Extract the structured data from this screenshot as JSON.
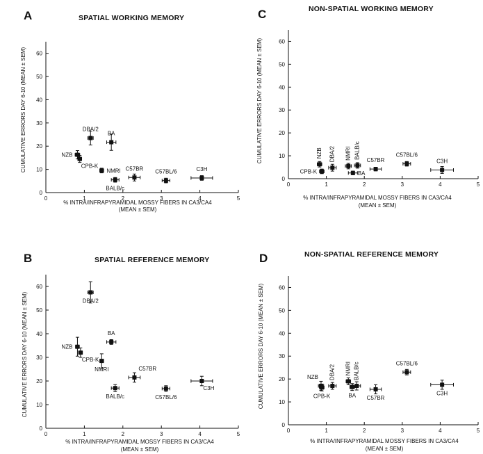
{
  "chart_data": [
    {
      "panel": "A",
      "type": "scatter",
      "title": "SPATIAL WORKING MEMORY",
      "xlabel": "% INTRA/INFRAPYRAMIDAL MOSSY FIBERS IN CA3/CA4",
      "xlabel2": "(MEAN ± SEM)",
      "ylabel": "CUMULATIVE ERRORS DAY 6-10  (MEAN ± SEM)",
      "xlim": [
        0,
        5
      ],
      "ylim": [
        0,
        65
      ],
      "xticks": [
        "0",
        "1",
        "2",
        "3",
        "4",
        "5"
      ],
      "yticks": [
        "0",
        "10",
        "20",
        "30",
        "40",
        "50",
        "60"
      ],
      "points": [
        {
          "label": "NZB",
          "x": 0.82,
          "y": 16.3,
          "xerr": 0.06,
          "yerr": 1.8,
          "label_pos": "left"
        },
        {
          "label": "CPB-K",
          "x": 0.88,
          "y": 14.5,
          "xerr": 0.05,
          "yerr": 1.5,
          "label_pos": "below-right"
        },
        {
          "label": "DBA/2",
          "x": 1.16,
          "y": 23.5,
          "xerr": 0.07,
          "yerr": 3.0,
          "label_pos": "above"
        },
        {
          "label": "BA",
          "x": 1.7,
          "y": 21.7,
          "xerr": 0.12,
          "yerr": 3.5,
          "label_pos": "above"
        },
        {
          "label": "NMRI",
          "x": 1.45,
          "y": 9.5,
          "xerr": 0.05,
          "yerr": 1.0,
          "label_pos": "right"
        },
        {
          "label": "BALB/c",
          "x": 1.8,
          "y": 5.5,
          "xerr": 0.1,
          "yerr": 1.0,
          "label_pos": "below"
        },
        {
          "label": "C57BR",
          "x": 2.3,
          "y": 6.5,
          "xerr": 0.15,
          "yerr": 1.5,
          "label_pos": "above"
        },
        {
          "label": "C57BL/6",
          "x": 3.12,
          "y": 5.2,
          "xerr": 0.1,
          "yerr": 1.0,
          "label_pos": "above"
        },
        {
          "label": "C3H",
          "x": 4.05,
          "y": 6.3,
          "xerr": 0.28,
          "yerr": 1.0,
          "label_pos": "above"
        }
      ]
    },
    {
      "panel": "C",
      "type": "scatter",
      "title": "NON-SPATIAL WORKING MEMORY",
      "xlabel": "% INTRA/INFRAPYRAMIDAL MOSSY FIBERS IN CA3/CA4",
      "xlabel2": "(MEAN ± SEM)",
      "ylabel": "CUMULATIVE ERRORS DAY 6-10  (MEAN ± SEM)",
      "xlim": [
        0,
        5
      ],
      "ylim": [
        0,
        65
      ],
      "xticks": [
        "0",
        "1",
        "2",
        "3",
        "4",
        "5"
      ],
      "yticks": [
        "0",
        "10",
        "20",
        "30",
        "40",
        "50",
        "60"
      ],
      "points": [
        {
          "label": "NZB",
          "x": 0.82,
          "y": 6.3,
          "xerr": 0.06,
          "yerr": 1.2,
          "label_pos": "above-rot"
        },
        {
          "label": "CPB-K",
          "x": 0.88,
          "y": 3.2,
          "xerr": 0.06,
          "yerr": 1.0,
          "label_pos": "left"
        },
        {
          "label": "DBA/2",
          "x": 1.16,
          "y": 4.8,
          "xerr": 0.1,
          "yerr": 1.5,
          "label_pos": "above-rot"
        },
        {
          "label": "NMRI",
          "x": 1.58,
          "y": 5.5,
          "xerr": 0.08,
          "yerr": 1.2,
          "label_pos": "above-rot"
        },
        {
          "label": "BALB/c",
          "x": 1.82,
          "y": 5.8,
          "xerr": 0.08,
          "yerr": 1.2,
          "label_pos": "above-rot"
        },
        {
          "label": "BA",
          "x": 1.7,
          "y": 2.5,
          "xerr": 0.12,
          "yerr": 0.8,
          "label_pos": "right"
        },
        {
          "label": "C57BR",
          "x": 2.3,
          "y": 4.2,
          "xerr": 0.15,
          "yerr": 0.8,
          "label_pos": "above"
        },
        {
          "label": "C57BL/6",
          "x": 3.12,
          "y": 6.5,
          "xerr": 0.1,
          "yerr": 1.0,
          "label_pos": "above"
        },
        {
          "label": "C3H",
          "x": 4.05,
          "y": 3.8,
          "xerr": 0.3,
          "yerr": 1.5,
          "label_pos": "above"
        }
      ]
    },
    {
      "panel": "B",
      "type": "scatter",
      "title": "SPATIAL REFERENCE MEMORY",
      "xlabel": "% INTRA/INFRAPYRAMIDAL MOSSY FIBERS IN CA3/CA4",
      "xlabel2": "(MEAN ± SEM)",
      "ylabel": "CUMULATIVE ERRORS DAY 6-10  (MEAN ± SEM)",
      "xlim": [
        0,
        5
      ],
      "ylim": [
        0,
        65
      ],
      "xticks": [
        "0",
        "1",
        "2",
        "3",
        "4",
        "5"
      ],
      "yticks": [
        "0",
        "10",
        "20",
        "30",
        "40",
        "50",
        "60"
      ],
      "points": [
        {
          "label": "NZB",
          "x": 0.82,
          "y": 34.5,
          "xerr": 0.05,
          "yerr": 4.0,
          "label_pos": "left"
        },
        {
          "label": "CPB-K",
          "x": 0.9,
          "y": 32.0,
          "xerr": 0.05,
          "yerr": 2.0,
          "label_pos": "below-right"
        },
        {
          "label": "DBA/2",
          "x": 1.16,
          "y": 57.5,
          "xerr": 0.07,
          "yerr": 4.5,
          "label_pos": "below"
        },
        {
          "label": "BA",
          "x": 1.7,
          "y": 36.5,
          "xerr": 0.12,
          "yerr": 1.0,
          "label_pos": "above"
        },
        {
          "label": "NMRI",
          "x": 1.45,
          "y": 28.5,
          "xerr": 0.05,
          "yerr": 3.0,
          "label_pos": "below"
        },
        {
          "label": "BALB/c",
          "x": 1.8,
          "y": 17.0,
          "xerr": 0.1,
          "yerr": 1.5,
          "label_pos": "below"
        },
        {
          "label": "C57BR",
          "x": 2.3,
          "y": 21.5,
          "xerr": 0.15,
          "yerr": 2.0,
          "label_pos": "above-right"
        },
        {
          "label": "C57BL/6",
          "x": 3.12,
          "y": 16.8,
          "xerr": 0.1,
          "yerr": 1.2,
          "label_pos": "below"
        },
        {
          "label": "C3H",
          "x": 4.05,
          "y": 20.0,
          "xerr": 0.28,
          "yerr": 2.0,
          "label_pos": "below-right"
        }
      ]
    },
    {
      "panel": "D",
      "type": "scatter",
      "title": "NON-SPATIAL  REFERENCE MEMORY",
      "xlabel": "% INTRA/INFRAPYRAMIDAL MOSSY FIBERS IN CA3/CA4",
      "xlabel2": "(MEAN ± SEM)",
      "ylabel": "CUMULATIVE ERRORS DAY 6-10  (MEAN ± SEM)",
      "xlim": [
        0,
        5
      ],
      "ylim": [
        0,
        65
      ],
      "xticks": [
        "0",
        "1",
        "2",
        "3",
        "4",
        "5"
      ],
      "yticks": [
        "0",
        "10",
        "20",
        "30",
        "40",
        "50",
        "60"
      ],
      "points": [
        {
          "label": "NZB",
          "x": 0.86,
          "y": 17.0,
          "xerr": 0.07,
          "yerr": 2.0,
          "label_pos": "above-left"
        },
        {
          "label": "CPB-K",
          "x": 0.88,
          "y": 16.3,
          "xerr": 0.06,
          "yerr": 1.5,
          "label_pos": "below"
        },
        {
          "label": "DBA/2",
          "x": 1.16,
          "y": 17.0,
          "xerr": 0.1,
          "yerr": 1.5,
          "label_pos": "above-rot"
        },
        {
          "label": "NMRI",
          "x": 1.58,
          "y": 19.0,
          "xerr": 0.06,
          "yerr": 1.5,
          "label_pos": "above-rot"
        },
        {
          "label": "BALB/c",
          "x": 1.8,
          "y": 17.0,
          "xerr": 0.1,
          "yerr": 1.8,
          "label_pos": "above-rot"
        },
        {
          "label": "BA",
          "x": 1.68,
          "y": 16.5,
          "xerr": 0.06,
          "yerr": 1.5,
          "label_pos": "below"
        },
        {
          "label": "C57BR",
          "x": 2.3,
          "y": 15.5,
          "xerr": 0.15,
          "yerr": 2.0,
          "label_pos": "below"
        },
        {
          "label": "C57BL/6",
          "x": 3.12,
          "y": 23.0,
          "xerr": 0.1,
          "yerr": 1.2,
          "label_pos": "above"
        },
        {
          "label": "C3H",
          "x": 4.05,
          "y": 17.5,
          "xerr": 0.3,
          "yerr": 2.0,
          "label_pos": "below"
        }
      ]
    }
  ]
}
